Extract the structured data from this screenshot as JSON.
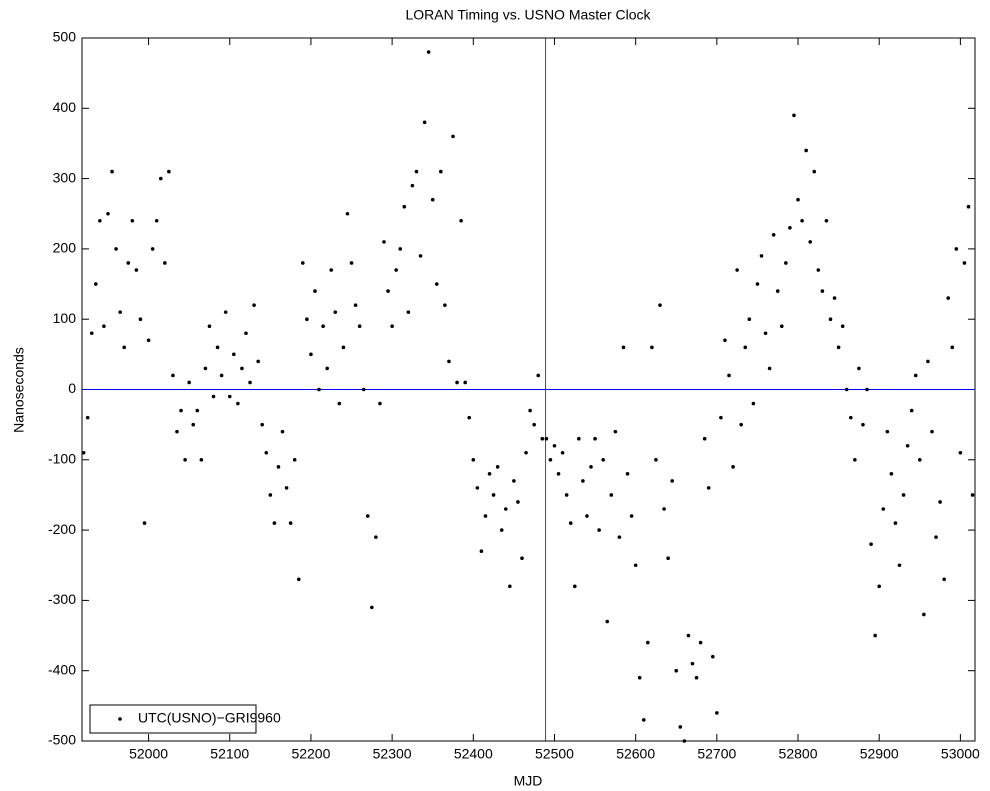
{
  "chart_data": {
    "type": "scatter",
    "title": "LORAN Timing vs. USNO Master Clock",
    "x_label": "MJD",
    "y_label": "Nanoseconds",
    "xlim": [
      51918,
      53018
    ],
    "ylim": [
      -500,
      500
    ],
    "xticks": [
      52000,
      52100,
      52200,
      52300,
      52400,
      52500,
      52600,
      52700,
      52800,
      52900,
      53000
    ],
    "yticks": [
      -500,
      -400,
      -300,
      -200,
      -100,
      0,
      100,
      200,
      300,
      400,
      500
    ],
    "legend": "lower left",
    "hlines": [
      {
        "value": 0,
        "color": "#0000ff"
      }
    ],
    "vlines": [
      {
        "value": 52489,
        "color": "#008000"
      }
    ],
    "series": [
      {
        "name": "UTC(USNO)−GRI9960",
        "color": "#000000",
        "x": [
          51920,
          51925,
          51930,
          51935,
          51940,
          51945,
          51950,
          51955,
          51960,
          51965,
          51970,
          51975,
          51980,
          51985,
          51990,
          51995,
          52000,
          52005,
          52010,
          52015,
          52020,
          52025,
          52030,
          52035,
          52040,
          52045,
          52050,
          52055,
          52060,
          52065,
          52070,
          52075,
          52080,
          52085,
          52090,
          52095,
          52100,
          52105,
          52110,
          52115,
          52120,
          52125,
          52130,
          52135,
          52140,
          52145,
          52150,
          52155,
          52160,
          52165,
          52170,
          52175,
          52180,
          52185,
          52190,
          52195,
          52200,
          52205,
          52210,
          52215,
          52220,
          52225,
          52230,
          52235,
          52240,
          52245,
          52250,
          52255,
          52260,
          52265,
          52270,
          52275,
          52280,
          52285,
          52290,
          52295,
          52300,
          52305,
          52310,
          52315,
          52320,
          52325,
          52330,
          52335,
          52340,
          52345,
          52350,
          52355,
          52360,
          52365,
          52370,
          52375,
          52380,
          52385,
          52390,
          52395,
          52400,
          52405,
          52410,
          52415,
          52420,
          52425,
          52430,
          52435,
          52440,
          52445,
          52450,
          52455,
          52460,
          52465,
          52470,
          52475,
          52480,
          52485,
          52490,
          52495,
          52500,
          52505,
          52510,
          52515,
          52520,
          52525,
          52530,
          52535,
          52540,
          52545,
          52550,
          52555,
          52560,
          52565,
          52570,
          52575,
          52580,
          52585,
          52590,
          52595,
          52600,
          52605,
          52610,
          52615,
          52620,
          52625,
          52630,
          52635,
          52640,
          52645,
          52650,
          52655,
          52660,
          52665,
          52670,
          52675,
          52680,
          52685,
          52690,
          52695,
          52700,
          52705,
          52710,
          52715,
          52720,
          52725,
          52730,
          52735,
          52740,
          52745,
          52750,
          52755,
          52760,
          52765,
          52770,
          52775,
          52780,
          52785,
          52790,
          52795,
          52800,
          52805,
          52810,
          52815,
          52820,
          52825,
          52830,
          52835,
          52840,
          52845,
          52850,
          52855,
          52860,
          52865,
          52870,
          52875,
          52880,
          52885,
          52890,
          52895,
          52900,
          52905,
          52910,
          52915,
          52920,
          52925,
          52930,
          52935,
          52940,
          52945,
          52950,
          52955,
          52960,
          52965,
          52970,
          52975,
          52980,
          52985,
          52990,
          52995,
          53000,
          53005,
          53010,
          53015
        ],
        "values": [
          -90,
          -40,
          80,
          150,
          240,
          90,
          250,
          310,
          200,
          110,
          60,
          180,
          240,
          170,
          100,
          -190,
          70,
          200,
          240,
          300,
          180,
          310,
          20,
          -60,
          -30,
          -100,
          10,
          -50,
          -30,
          -100,
          30,
          90,
          -10,
          60,
          20,
          110,
          -10,
          50,
          -20,
          30,
          80,
          10,
          120,
          40,
          -50,
          -90,
          -150,
          -190,
          -110,
          -60,
          -140,
          -190,
          -100,
          -270,
          180,
          100,
          50,
          140,
          0,
          90,
          30,
          170,
          110,
          -20,
          60,
          250,
          180,
          120,
          90,
          0,
          -180,
          -310,
          -210,
          -20,
          210,
          140,
          90,
          170,
          200,
          260,
          110,
          290,
          310,
          190,
          380,
          480,
          270,
          150,
          310,
          120,
          40,
          360,
          10,
          240,
          10,
          -40,
          -100,
          -140,
          -230,
          -180,
          -120,
          -150,
          -110,
          -200,
          -170,
          -280,
          -130,
          -160,
          -240,
          -90,
          -30,
          -50,
          20,
          -70,
          -70,
          -100,
          -80,
          -120,
          -90,
          -150,
          -190,
          -280,
          -70,
          -130,
          -180,
          -110,
          -70,
          -200,
          -100,
          -330,
          -150,
          -60,
          -210,
          60,
          -120,
          -180,
          -250,
          -410,
          -470,
          -360,
          60,
          -100,
          120,
          -170,
          -240,
          -130,
          -400,
          -480,
          -500,
          -350,
          -390,
          -410,
          -360,
          -70,
          -140,
          -380,
          -460,
          -40,
          70,
          20,
          -110,
          170,
          -50,
          60,
          100,
          -20,
          150,
          190,
          80,
          30,
          220,
          140,
          90,
          180,
          230,
          390,
          270,
          240,
          340,
          210,
          310,
          170,
          140,
          240,
          100,
          130,
          60,
          90,
          0,
          -40,
          -100,
          30,
          -50,
          0,
          -220,
          -350,
          -280,
          -170,
          -60,
          -120,
          -190,
          -250,
          -150,
          -80,
          -30,
          20,
          -100,
          -320,
          40,
          -60,
          -210,
          -160,
          -270,
          130,
          60,
          200,
          -90,
          180,
          260,
          -150
        ]
      }
    ]
  }
}
